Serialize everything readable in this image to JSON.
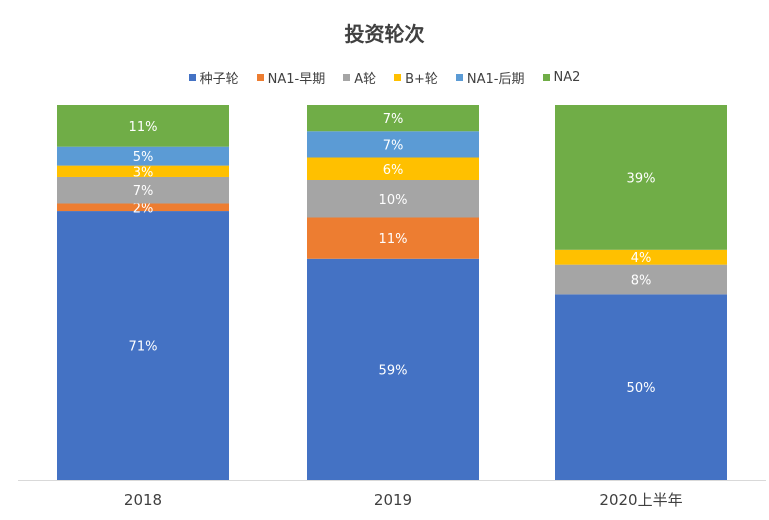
{
  "chart_data": {
    "type": "bar",
    "stacked": true,
    "title": "投资轮次",
    "categories": [
      "2018",
      "2019",
      "2020上半年"
    ],
    "xlabel": "",
    "ylabel": "",
    "ylim": [
      0,
      100
    ],
    "grid": false,
    "legend_position": "top",
    "series": [
      {
        "name": "种子轮",
        "color": "#4472C4",
        "values": [
          71,
          59,
          50
        ]
      },
      {
        "name": "NA1-早期",
        "color": "#ED7D31",
        "values": [
          2,
          11,
          0
        ]
      },
      {
        "name": "A轮",
        "color": "#A5A5A5",
        "values": [
          7,
          10,
          8
        ]
      },
      {
        "name": "B+轮",
        "color": "#FFC000",
        "values": [
          3,
          6,
          4
        ]
      },
      {
        "name": "NA1-后期",
        "color": "#5B9BD5",
        "values": [
          5,
          7,
          0
        ]
      },
      {
        "name": "NA2",
        "color": "#70AD47",
        "values": [
          11,
          7,
          39
        ]
      }
    ],
    "data_labels": [
      [
        "71%",
        "59%",
        "50%"
      ],
      [
        "2%",
        "11%",
        ""
      ],
      [
        "7%",
        "10%",
        "8%"
      ],
      [
        "3%",
        "6%",
        "4%"
      ],
      [
        "5%",
        "7%",
        ""
      ],
      [
        "11%",
        "7%",
        "39%"
      ]
    ]
  }
}
